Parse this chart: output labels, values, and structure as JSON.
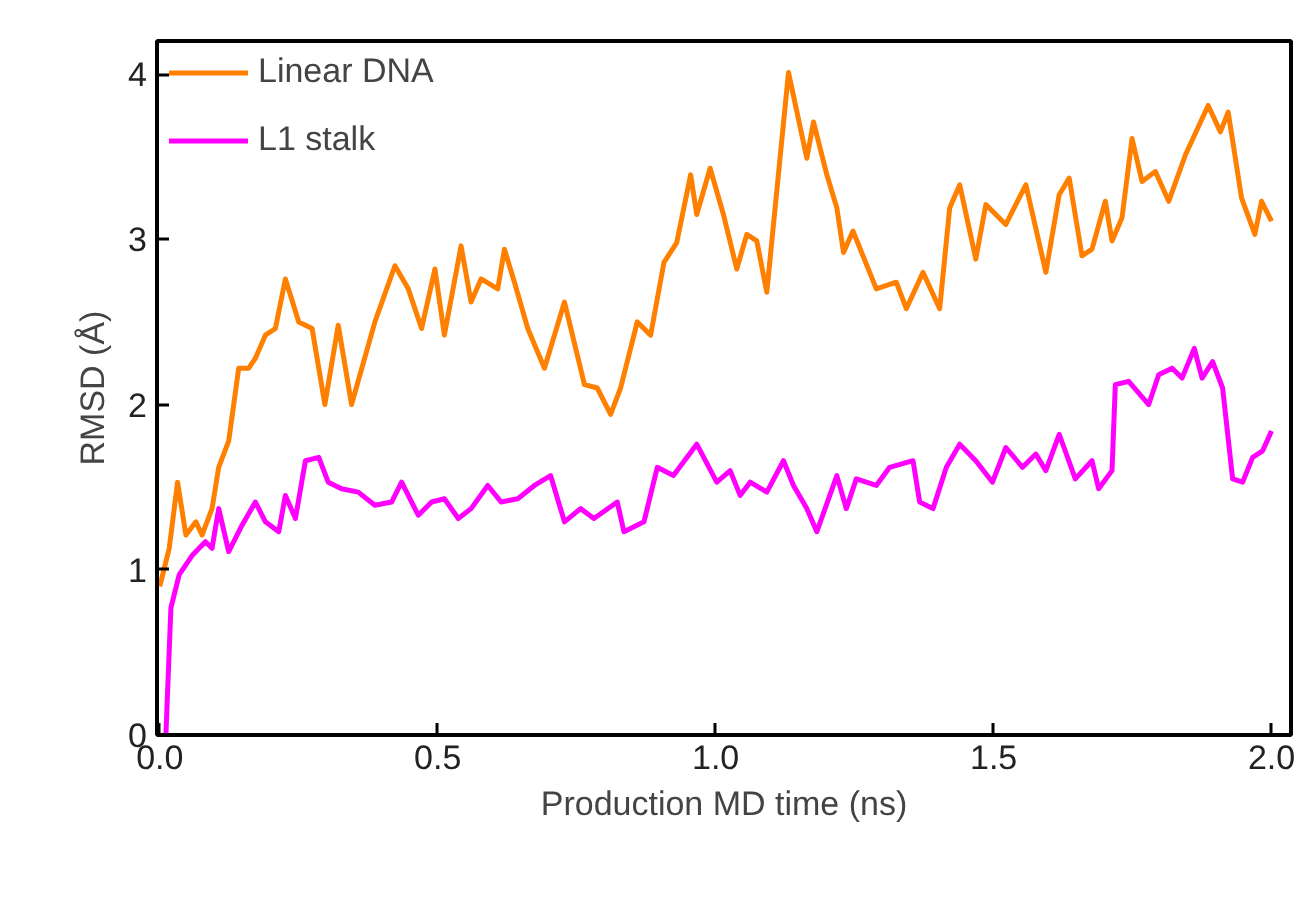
{
  "chart_data": {
    "type": "line",
    "xlabel": "Production MD time (ns)",
    "ylabel": "RMSD (Å)",
    "xlim": [
      -0.005,
      2.035
    ],
    "ylim": [
      0,
      4.2
    ],
    "xticks": [
      {
        "value": 0,
        "label": "0.0"
      },
      0.5,
      {
        "value": 1,
        "label": "1.0"
      },
      1.5,
      {
        "value": 2,
        "label": "2.0"
      }
    ],
    "yticks": [
      0,
      1,
      2,
      3,
      4
    ],
    "grid": false,
    "legend": "top left",
    "marker": "none",
    "line_style": "solid",
    "series": [
      {
        "name": "Linear DNA",
        "color": "#ff8000",
        "x": [
          0.0,
          0.017,
          0.032,
          0.047,
          0.065,
          0.076,
          0.094,
          0.106,
          0.124,
          0.142,
          0.16,
          0.172,
          0.19,
          0.208,
          0.226,
          0.25,
          0.274,
          0.297,
          0.321,
          0.345,
          0.387,
          0.423,
          0.447,
          0.471,
          0.495,
          0.512,
          0.542,
          0.56,
          0.578,
          0.608,
          0.62,
          0.638,
          0.662,
          0.692,
          0.728,
          0.764,
          0.787,
          0.811,
          0.829,
          0.859,
          0.883,
          0.907,
          0.93,
          0.955,
          0.966,
          0.99,
          1.014,
          1.038,
          1.056,
          1.074,
          1.092,
          1.131,
          1.164,
          1.176,
          1.2,
          1.218,
          1.23,
          1.247,
          1.289,
          1.325,
          1.343,
          1.373,
          1.403,
          1.421,
          1.439,
          1.468,
          1.486,
          1.522,
          1.558,
          1.594,
          1.618,
          1.636,
          1.659,
          1.677,
          1.701,
          1.713,
          1.731,
          1.749,
          1.767,
          1.791,
          1.815,
          1.845,
          1.886,
          1.908,
          1.922,
          1.946,
          1.97,
          1.982,
          2.0
        ],
        "values": [
          0.9,
          1.13,
          1.53,
          1.21,
          1.29,
          1.21,
          1.37,
          1.62,
          1.78,
          2.22,
          2.22,
          2.28,
          2.42,
          2.46,
          2.76,
          2.5,
          2.46,
          2.0,
          2.48,
          2.0,
          2.5,
          2.84,
          2.7,
          2.46,
          2.82,
          2.42,
          2.96,
          2.62,
          2.76,
          2.7,
          2.94,
          2.74,
          2.46,
          2.22,
          2.62,
          2.12,
          2.1,
          1.94,
          2.1,
          2.5,
          2.42,
          2.86,
          2.98,
          3.39,
          3.15,
          3.43,
          3.15,
          2.82,
          3.03,
          2.99,
          2.68,
          4.01,
          3.49,
          3.71,
          3.39,
          3.19,
          2.92,
          3.05,
          2.7,
          2.74,
          2.58,
          2.8,
          2.58,
          3.19,
          3.33,
          2.88,
          3.21,
          3.09,
          3.33,
          2.8,
          3.27,
          3.37,
          2.9,
          2.94,
          3.23,
          2.99,
          3.13,
          3.61,
          3.35,
          3.41,
          3.23,
          3.51,
          3.81,
          3.65,
          3.77,
          3.25,
          3.03,
          3.23,
          3.11
        ]
      },
      {
        "name": "L1 stalk",
        "color": "#ff00ff",
        "x": [
          0.011,
          0.02,
          0.035,
          0.059,
          0.082,
          0.094,
          0.106,
          0.124,
          0.148,
          0.172,
          0.19,
          0.214,
          0.226,
          0.244,
          0.262,
          0.286,
          0.303,
          0.327,
          0.357,
          0.387,
          0.417,
          0.435,
          0.465,
          0.489,
          0.512,
          0.537,
          0.56,
          0.59,
          0.614,
          0.644,
          0.674,
          0.703,
          0.728,
          0.757,
          0.781,
          0.823,
          0.835,
          0.871,
          0.895,
          0.924,
          0.966,
          1.002,
          1.026,
          1.044,
          1.062,
          1.092,
          1.122,
          1.14,
          1.164,
          1.182,
          1.218,
          1.235,
          1.253,
          1.289,
          1.313,
          1.355,
          1.367,
          1.391,
          1.415,
          1.439,
          1.468,
          1.498,
          1.522,
          1.552,
          1.576,
          1.594,
          1.618,
          1.647,
          1.677,
          1.689,
          1.713,
          1.719,
          1.743,
          1.779,
          1.797,
          1.821,
          1.839,
          1.861,
          1.875,
          1.894,
          1.912,
          1.93,
          1.948,
          1.966,
          1.984,
          2.0
        ],
        "values": [
          0.0,
          0.77,
          0.97,
          1.09,
          1.17,
          1.13,
          1.37,
          1.11,
          1.27,
          1.41,
          1.29,
          1.23,
          1.45,
          1.31,
          1.66,
          1.68,
          1.53,
          1.49,
          1.47,
          1.39,
          1.41,
          1.53,
          1.33,
          1.41,
          1.43,
          1.31,
          1.37,
          1.51,
          1.41,
          1.43,
          1.51,
          1.57,
          1.29,
          1.37,
          1.31,
          1.41,
          1.23,
          1.29,
          1.62,
          1.57,
          1.76,
          1.53,
          1.6,
          1.45,
          1.53,
          1.47,
          1.66,
          1.51,
          1.37,
          1.23,
          1.57,
          1.37,
          1.55,
          1.51,
          1.62,
          1.66,
          1.41,
          1.37,
          1.62,
          1.76,
          1.66,
          1.53,
          1.74,
          1.62,
          1.7,
          1.6,
          1.82,
          1.55,
          1.66,
          1.49,
          1.6,
          2.12,
          2.14,
          2.0,
          2.18,
          2.22,
          2.16,
          2.34,
          2.16,
          2.26,
          2.1,
          1.55,
          1.53,
          1.68,
          1.72,
          1.84
        ]
      }
    ]
  }
}
